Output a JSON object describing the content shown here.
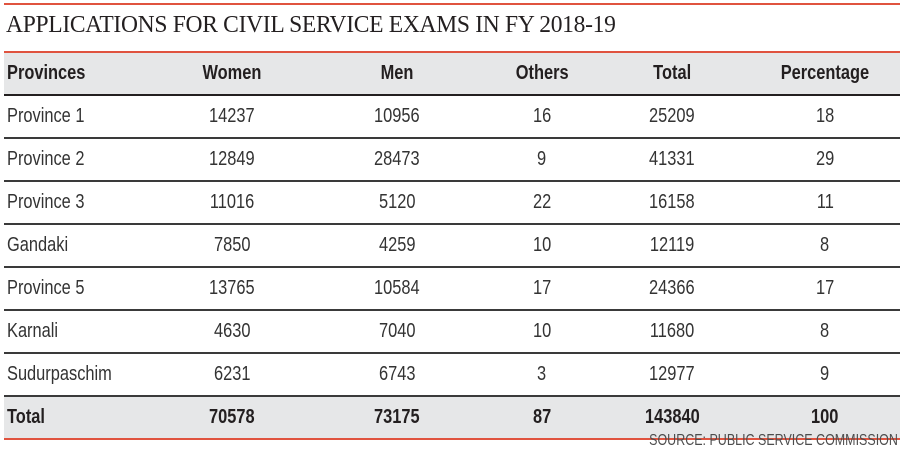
{
  "title": "APPLICATIONS FOR CIVIL SERVICE EXAMS IN FY 2018-19",
  "colors": {
    "accent_rule": "#e0533f",
    "header_band": "#e6e7e8",
    "text": "#231f20"
  },
  "table": {
    "headers": [
      "Provinces",
      "Women",
      "Men",
      "Others",
      "Total",
      "Percentage"
    ],
    "rows": [
      [
        "Province 1",
        "14237",
        "10956",
        "16",
        "25209",
        "18"
      ],
      [
        "Province 2",
        "12849",
        "28473",
        "9",
        "41331",
        "29"
      ],
      [
        "Province 3",
        "11016",
        "5120",
        "22",
        "16158",
        "11"
      ],
      [
        "Gandaki",
        "7850",
        "4259",
        "10",
        "12119",
        "8"
      ],
      [
        "Province 5",
        "13765",
        "10584",
        "17",
        "24366",
        "17"
      ],
      [
        "Karnali",
        "4630",
        "7040",
        "10",
        "11680",
        "8"
      ],
      [
        "Sudurpaschim",
        "6231",
        "6743",
        "3",
        "12977",
        "9"
      ]
    ],
    "total": [
      "Total",
      "70578",
      "73175",
      "87",
      "143840",
      "100"
    ]
  },
  "source": "SOURCE: PUBLIC SERVICE COMMISSION"
}
